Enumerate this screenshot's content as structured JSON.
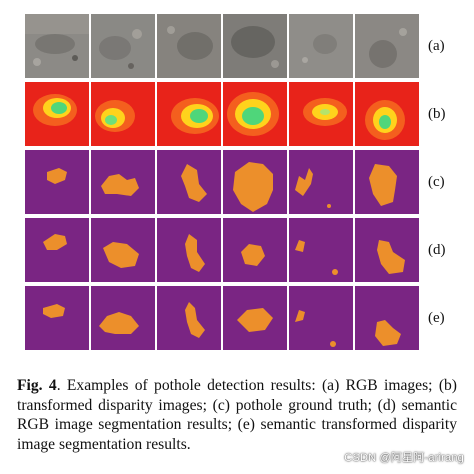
{
  "figure": {
    "row_labels": [
      "(a)",
      "(b)",
      "(c)",
      "(d)",
      "(e)"
    ],
    "colors": {
      "rgb_base": "#8c8a86",
      "disparity_base": "#e8231a",
      "disparity_mid": "#ffd31c",
      "disparity_hot": "#4fd67a",
      "seg_background": "#7a2583",
      "seg_pothole": "#ec8f2b"
    }
  },
  "caption": {
    "label": "Fig. 4",
    "text": ". Examples of pothole detection results: (a) RGB images; (b) transformed disparity images; (c) pothole ground truth; (d) semantic RGB image segmentation results; (e) semantic transformed disparity image segmentation results."
  },
  "watermark": {
    "text": "CSDN @阿星阿-arirang"
  }
}
